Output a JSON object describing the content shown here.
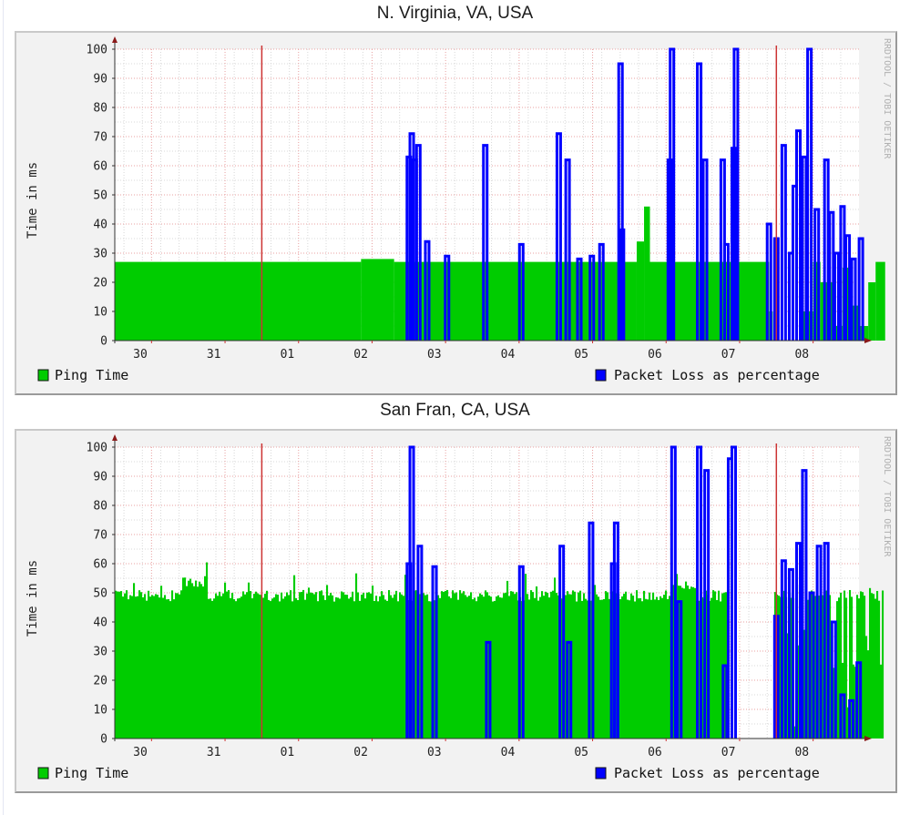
{
  "page": {
    "charts_titles": [
      "N. Virginia, VA, USA",
      "San Fran, CA, USA"
    ]
  },
  "charts": [
    {
      "title": "N. Virginia, VA, USA",
      "ylabel": "Time in ms",
      "watermark": "RRDTOOL / TOBI OETIKER",
      "legend": [
        {
          "label": "Ping Time",
          "color": "#00cc00"
        },
        {
          "label": "Packet Loss as percentage",
          "color": "#0000ff"
        }
      ]
    },
    {
      "title": "San Fran, CA, USA",
      "ylabel": "Time in ms",
      "watermark": "RRDTOOL / TOBI OETIKER",
      "legend": [
        {
          "label": "Ping Time",
          "color": "#00cc00"
        },
        {
          "label": "Packet Loss as percentage",
          "color": "#0000ff"
        }
      ]
    }
  ],
  "colors": {
    "ping": "#00cc00",
    "loss": "#0000ff",
    "grid_major": "#e8a0a0",
    "grid_minor": "#d8d8d8",
    "vrule": "#cc3333",
    "axis": "#333333",
    "arrow": "#8b1a1a",
    "panel_bg": "#f2f2f2",
    "plot_bg": "#ffffff"
  },
  "chart_data": [
    {
      "type": "area",
      "title": "N. Virginia, VA, USA",
      "xlabel": "",
      "ylabel": "Time in ms",
      "ylim": [
        0,
        100
      ],
      "yticks": [
        0,
        10,
        20,
        30,
        40,
        50,
        60,
        70,
        80,
        90,
        100
      ],
      "xticks": [
        "30",
        "31",
        "01",
        "02",
        "03",
        "04",
        "05",
        "06",
        "07",
        "08"
      ],
      "xlim_days": [
        0,
        10.5
      ],
      "vertical_rules_day": [
        2.0,
        9.0
      ],
      "grid": true,
      "legend_position": "bottom",
      "series": [
        {
          "name": "Ping Time",
          "style": "area",
          "segments": [
            {
              "from": 0.0,
              "to": 3.35,
              "value": 27
            },
            {
              "from": 3.35,
              "to": 3.8,
              "value": 28
            },
            {
              "from": 3.8,
              "to": 7.1,
              "value": 27
            },
            {
              "from": 7.1,
              "to": 7.2,
              "value": 34
            },
            {
              "from": 7.2,
              "to": 7.28,
              "value": 46
            },
            {
              "from": 7.28,
              "to": 8.9,
              "value": 27
            },
            {
              "from": 8.9,
              "to": 8.95,
              "value": 10
            },
            {
              "from": 8.95,
              "to": 9.35,
              "value": 0
            },
            {
              "from": 9.35,
              "to": 9.5,
              "value": 10
            },
            {
              "from": 9.5,
              "to": 9.6,
              "value": 27
            },
            {
              "from": 9.6,
              "to": 9.8,
              "value": 20
            },
            {
              "from": 9.8,
              "to": 9.9,
              "value": 5
            },
            {
              "from": 9.9,
              "to": 10.0,
              "value": 25
            },
            {
              "from": 10.0,
              "to": 10.12,
              "value": 12
            },
            {
              "from": 10.12,
              "to": 10.25,
              "value": 5
            },
            {
              "from": 10.25,
              "to": 10.35,
              "value": 20
            },
            {
              "from": 10.35,
              "to": 10.48,
              "value": 27
            }
          ]
        },
        {
          "name": "Packet Loss as percentage",
          "style": "line",
          "spikes": [
            {
              "day": 4.0,
              "value": 63
            },
            {
              "day": 4.04,
              "value": 71
            },
            {
              "day": 4.08,
              "value": 62
            },
            {
              "day": 4.13,
              "value": 67
            },
            {
              "day": 4.25,
              "value": 34
            },
            {
              "day": 4.52,
              "value": 29
            },
            {
              "day": 5.04,
              "value": 67
            },
            {
              "day": 5.53,
              "value": 33
            },
            {
              "day": 6.04,
              "value": 71
            },
            {
              "day": 6.16,
              "value": 62
            },
            {
              "day": 6.32,
              "value": 28
            },
            {
              "day": 6.49,
              "value": 29
            },
            {
              "day": 6.62,
              "value": 33
            },
            {
              "day": 6.88,
              "value": 95
            },
            {
              "day": 6.9,
              "value": 38
            },
            {
              "day": 7.55,
              "value": 62
            },
            {
              "day": 7.58,
              "value": 100
            },
            {
              "day": 7.95,
              "value": 95
            },
            {
              "day": 8.03,
              "value": 62
            },
            {
              "day": 8.27,
              "value": 62
            },
            {
              "day": 8.32,
              "value": 33
            },
            {
              "day": 8.42,
              "value": 66
            },
            {
              "day": 8.45,
              "value": 100
            },
            {
              "day": 8.9,
              "value": 40
            },
            {
              "day": 9.0,
              "value": 35
            },
            {
              "day": 9.1,
              "value": 67
            },
            {
              "day": 9.2,
              "value": 30
            },
            {
              "day": 9.25,
              "value": 53
            },
            {
              "day": 9.3,
              "value": 72
            },
            {
              "day": 9.38,
              "value": 63
            },
            {
              "day": 9.45,
              "value": 100
            },
            {
              "day": 9.55,
              "value": 45
            },
            {
              "day": 9.68,
              "value": 62
            },
            {
              "day": 9.75,
              "value": 44
            },
            {
              "day": 9.82,
              "value": 30
            },
            {
              "day": 9.9,
              "value": 46
            },
            {
              "day": 9.97,
              "value": 36
            },
            {
              "day": 10.05,
              "value": 28
            },
            {
              "day": 10.15,
              "value": 35
            }
          ]
        }
      ]
    },
    {
      "type": "area",
      "title": "San Fran, CA, USA",
      "xlabel": "",
      "ylabel": "Time in ms",
      "ylim": [
        0,
        100
      ],
      "yticks": [
        0,
        10,
        20,
        30,
        40,
        50,
        60,
        70,
        80,
        90,
        100
      ],
      "xticks": [
        "30",
        "31",
        "01",
        "02",
        "03",
        "04",
        "05",
        "06",
        "07",
        "08"
      ],
      "xlim_days": [
        0,
        10.5
      ],
      "vertical_rules_day": [
        2.0,
        9.0
      ],
      "grid": true,
      "legend_position": "bottom",
      "series": [
        {
          "name": "Ping Time",
          "style": "area",
          "baseline": 49,
          "noise": 4,
          "bumps": [
            {
              "from": 0.9,
              "to": 1.25,
              "value": 54
            },
            {
              "from": 7.58,
              "to": 7.9,
              "value": 53
            }
          ],
          "gaps": [
            {
              "from": 8.35,
              "to": 8.95
            }
          ],
          "end_day": 10.45
        },
        {
          "name": "Packet Loss as percentage",
          "style": "line",
          "spikes": [
            {
              "day": 4.0,
              "value": 60
            },
            {
              "day": 4.04,
              "value": 100
            },
            {
              "day": 4.15,
              "value": 66
            },
            {
              "day": 4.35,
              "value": 59
            },
            {
              "day": 5.08,
              "value": 33
            },
            {
              "day": 5.53,
              "value": 59
            },
            {
              "day": 6.08,
              "value": 66
            },
            {
              "day": 6.18,
              "value": 33
            },
            {
              "day": 6.48,
              "value": 74
            },
            {
              "day": 6.78,
              "value": 60
            },
            {
              "day": 6.82,
              "value": 74
            },
            {
              "day": 7.6,
              "value": 100
            },
            {
              "day": 7.68,
              "value": 47
            },
            {
              "day": 7.95,
              "value": 100
            },
            {
              "day": 8.05,
              "value": 92
            },
            {
              "day": 8.3,
              "value": 25
            },
            {
              "day": 8.37,
              "value": 96
            },
            {
              "day": 8.42,
              "value": 100
            },
            {
              "day": 9.0,
              "value": 42
            },
            {
              "day": 9.1,
              "value": 61
            },
            {
              "day": 9.2,
              "value": 58
            },
            {
              "day": 9.3,
              "value": 67
            },
            {
              "day": 9.38,
              "value": 92
            },
            {
              "day": 9.48,
              "value": 50
            },
            {
              "day": 9.58,
              "value": 66
            },
            {
              "day": 9.68,
              "value": 67
            },
            {
              "day": 9.78,
              "value": 40
            },
            {
              "day": 9.9,
              "value": 15
            },
            {
              "day": 10.02,
              "value": 13
            },
            {
              "day": 10.12,
              "value": 26
            }
          ]
        }
      ]
    }
  ]
}
